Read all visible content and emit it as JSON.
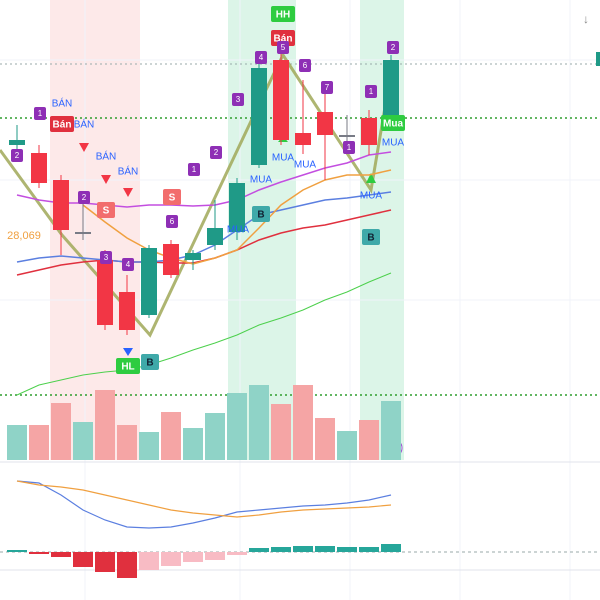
{
  "chart_data": {
    "type": "candlestick",
    "ylim": [
      25829,
      30429
    ],
    "up_color": "#1f9a87",
    "down_color": "#f23645",
    "doji_color": "#787b86",
    "candles": {
      "open": [
        28979,
        28899,
        28629,
        28109,
        27829,
        27509,
        27279,
        27989,
        27829,
        27979,
        28109,
        28779,
        29829,
        29099,
        29309,
        29079,
        29249,
        29249
      ],
      "close": [
        29029,
        28599,
        28129,
        28109,
        27179,
        27129,
        27949,
        27679,
        27899,
        28149,
        28599,
        29749,
        29029,
        28979,
        29079,
        29079,
        28979,
        29829
      ],
      "high": [
        29179,
        28979,
        28679,
        28479,
        27929,
        27679,
        27979,
        28029,
        27929,
        28429,
        28649,
        29879,
        29929,
        29629,
        29529,
        29279,
        29329,
        29879
      ],
      "low": [
        28829,
        28549,
        27879,
        28029,
        27129,
        27079,
        27249,
        27649,
        27729,
        27929,
        28029,
        28749,
        28979,
        28889,
        28629,
        28929,
        28879,
        29229
      ]
    },
    "overlays": [
      {
        "color": "#c34ee0",
        "values": [
          28479,
          28429,
          28399,
          28399,
          28379,
          28359,
          28379,
          28379,
          28369,
          28379,
          28429,
          28529,
          28609,
          28679,
          28749,
          28799,
          28879,
          28909
        ]
      },
      {
        "color": "#e0303e",
        "values": [
          27679,
          27729,
          27779,
          27809,
          27829,
          27809,
          27809,
          27799,
          27799,
          27849,
          27929,
          28029,
          28099,
          28149,
          28179,
          28229,
          28279,
          28329
        ]
      },
      {
        "color": "#5b7fe0",
        "values": [
          27809,
          27849,
          27869,
          27849,
          27829,
          27809,
          27809,
          27829,
          27879,
          27979,
          28129,
          28279,
          28329,
          28379,
          28429,
          28449,
          28479,
          28509
        ]
      },
      {
        "color": "#f0a040",
        "values": [
          null,
          null,
          null,
          28379,
          28209,
          28049,
          27929,
          27849,
          27789,
          27849,
          27929,
          28149,
          28379,
          28529,
          28629,
          28679,
          28679,
          28729
        ]
      },
      {
        "color": "#4cd04c",
        "values": [
          26479,
          26579,
          26629,
          26679,
          26709,
          26729,
          26779,
          26849,
          26929,
          26999,
          27079,
          27179,
          27249,
          27329,
          27429,
          27509,
          27609,
          27699
        ]
      }
    ],
    "volume": {
      "ylim": [
        0,
        100
      ],
      "up_color": "#8fd3c7",
      "down_color": "#f5a5a5",
      "values": [
        35,
        35,
        57,
        38,
        70,
        35,
        28,
        48,
        32,
        47,
        67,
        75,
        56,
        75,
        42,
        29,
        40,
        59
      ]
    },
    "macd": {
      "ylim": [
        -28,
        92
      ],
      "lines": [
        {
          "color": "#5b7fe0",
          "values": [
            71,
            69,
            57,
            42,
            32,
            25,
            24,
            25,
            29,
            34,
            40,
            42,
            44,
            46,
            47,
            49,
            52,
            57
          ]
        },
        {
          "color": "#f0a040",
          "values": [
            71,
            67,
            65,
            62,
            57,
            52,
            47,
            42,
            39,
            37,
            35,
            37,
            40,
            42,
            43,
            44,
            45,
            47
          ]
        }
      ],
      "histogram": [
        2,
        -2,
        -5,
        -15,
        -20,
        -26,
        -18,
        -14,
        -10,
        -8,
        -3,
        4,
        5,
        6,
        6,
        5,
        5,
        8
      ],
      "up_color": "#26a69a",
      "down_color": "#e0303e",
      "fade_color": "#f8bbc4"
    },
    "annotations": [
      "HH",
      "Bán",
      "Mua",
      "Bán",
      "BÁN",
      "BÁN",
      "BÁN",
      "BÁN",
      "MUA",
      "MUA",
      "MUA",
      "MUA",
      "MUA",
      "MUA",
      "HL",
      "B",
      "B",
      "B",
      "S",
      "S",
      "28,069",
      "1",
      "2",
      "2",
      "3",
      "4",
      "6",
      "1",
      "2",
      "3",
      "4",
      "5",
      "6",
      "7",
      "1",
      "1",
      "2"
    ]
  }
}
